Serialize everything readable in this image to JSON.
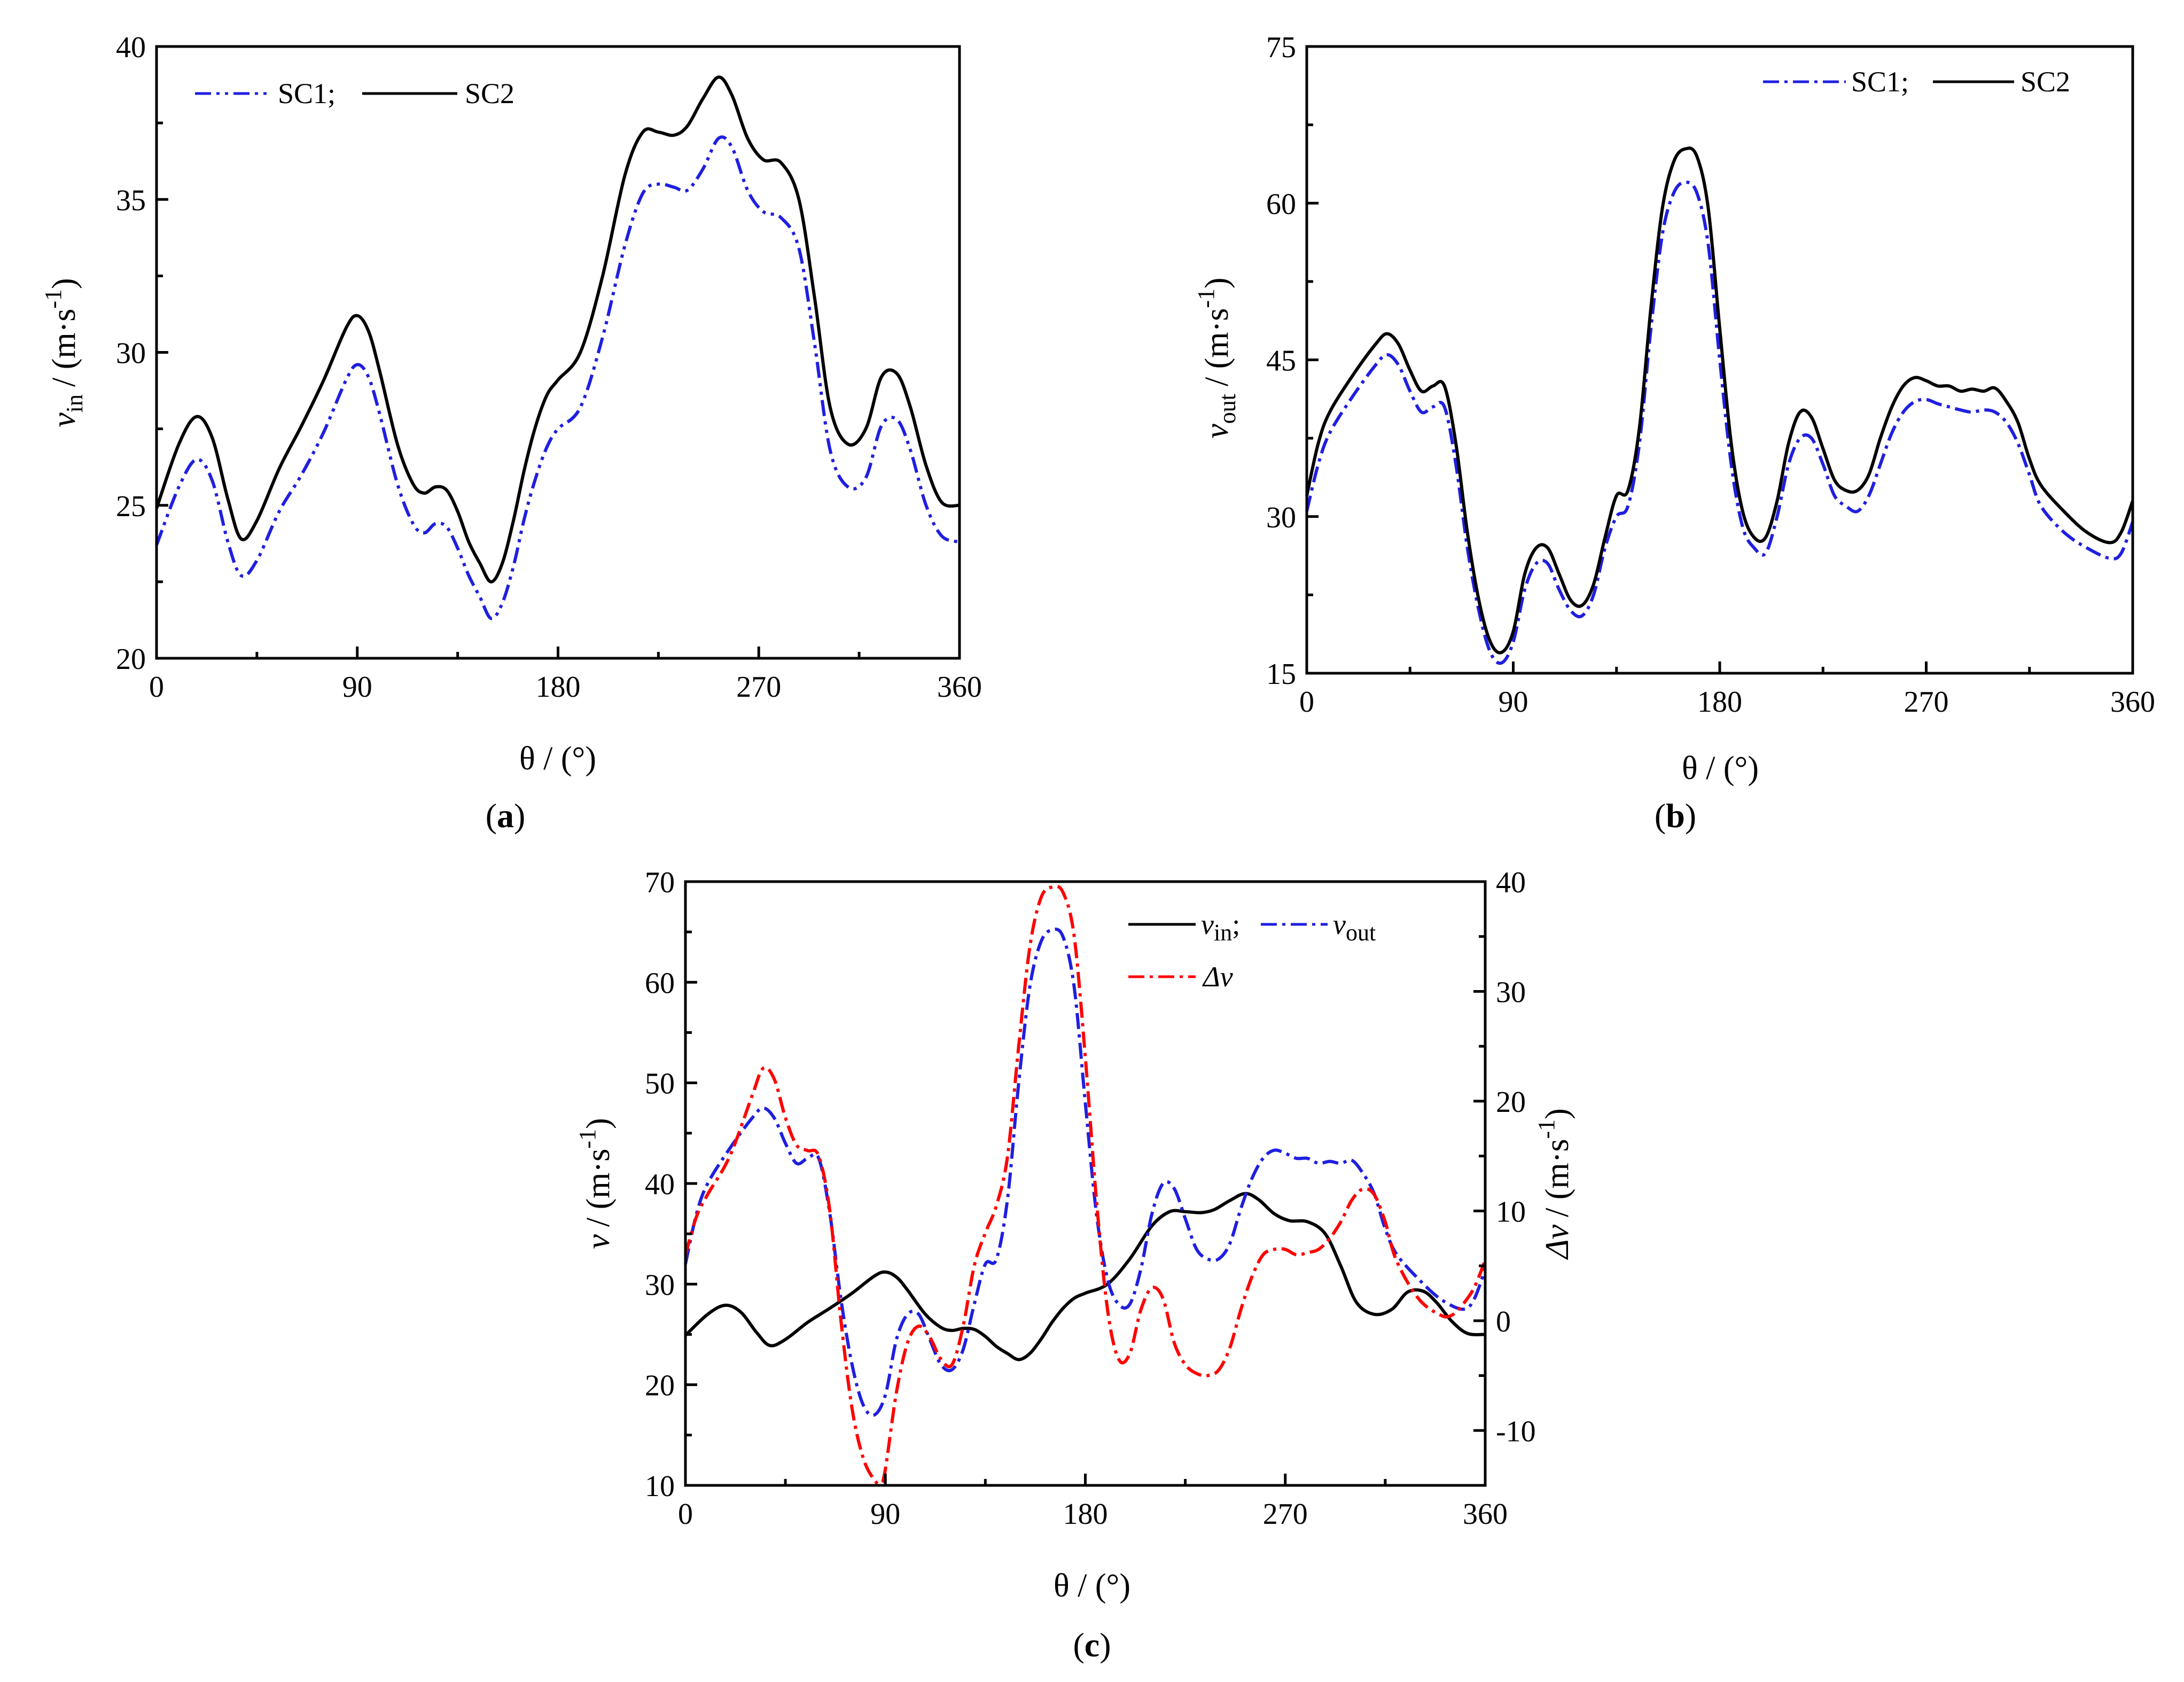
{
  "figure": {
    "panels": [
      {
        "id": "a",
        "label": "a"
      },
      {
        "id": "b",
        "label": "b"
      },
      {
        "id": "c",
        "label": "c"
      }
    ]
  },
  "colors": {
    "sc1": "#1f1fe0",
    "sc2": "#000000",
    "delta": "#ff0000"
  },
  "chart_data": [
    {
      "id": "a",
      "type": "line",
      "title": "",
      "panel_label": "a",
      "xlabel": "θ / (°)",
      "ylabel_main": "v",
      "ylabel_sub": "in",
      "ylabel_unit": "/ (m·s",
      "ylabel_exp": "-1",
      "xlim": [
        0,
        360
      ],
      "ylim": [
        20,
        40
      ],
      "xticks": [
        0,
        90,
        180,
        270,
        360
      ],
      "yticks": [
        20,
        25,
        30,
        35,
        40
      ],
      "legend": {
        "position": "top-left",
        "text1": "SC1;",
        "text2": "SC2"
      },
      "series": [
        {
          "name": "SC1",
          "style": "dash-dot-dot",
          "color": "#1f1fe0",
          "x": [
            0,
            10,
            18,
            25,
            32,
            38,
            45,
            55,
            65,
            75,
            85,
            90,
            95,
            100,
            108,
            115,
            120,
            125,
            130,
            135,
            140,
            145,
            150,
            155,
            160,
            165,
            170,
            175,
            180,
            190,
            200,
            210,
            218,
            225,
            232,
            238,
            245,
            252,
            258,
            265,
            272,
            280,
            288,
            295,
            302,
            310,
            318,
            325,
            332,
            338,
            345,
            352,
            360
          ],
          "y": [
            23.7,
            25.6,
            26.5,
            25.8,
            23.8,
            22.7,
            23.2,
            24.8,
            26.0,
            27.4,
            29.1,
            29.6,
            29.2,
            28.0,
            25.7,
            24.4,
            24.1,
            24.4,
            24.3,
            23.6,
            22.7,
            22.0,
            21.3,
            21.8,
            23.0,
            24.6,
            25.9,
            26.9,
            27.5,
            28.2,
            30.5,
            33.5,
            35.2,
            35.5,
            35.4,
            35.3,
            36.0,
            37.0,
            36.7,
            35.3,
            34.6,
            34.4,
            33.4,
            30.3,
            26.8,
            25.6,
            25.9,
            27.6,
            27.8,
            26.8,
            25.0,
            24.0,
            23.8
          ]
        },
        {
          "name": "SC2",
          "style": "solid",
          "color": "#000000",
          "x": [
            0,
            10,
            18,
            25,
            32,
            38,
            45,
            55,
            65,
            75,
            85,
            90,
            95,
            100,
            108,
            115,
            120,
            125,
            130,
            135,
            140,
            145,
            150,
            155,
            160,
            165,
            170,
            175,
            180,
            190,
            200,
            210,
            218,
            225,
            232,
            238,
            245,
            252,
            258,
            265,
            272,
            280,
            288,
            295,
            302,
            310,
            318,
            325,
            332,
            338,
            345,
            352,
            360
          ],
          "y": [
            24.9,
            27.0,
            27.9,
            27.2,
            25.2,
            23.9,
            24.5,
            26.2,
            27.6,
            29.1,
            30.8,
            31.2,
            30.7,
            29.4,
            27.0,
            25.7,
            25.4,
            25.6,
            25.5,
            24.8,
            23.8,
            23.1,
            22.5,
            23.1,
            24.5,
            26.2,
            27.6,
            28.6,
            29.1,
            30.0,
            32.5,
            35.8,
            37.2,
            37.2,
            37.1,
            37.4,
            38.3,
            39.0,
            38.4,
            37.0,
            36.3,
            36.2,
            35.0,
            31.8,
            28.2,
            27.0,
            27.5,
            29.2,
            29.3,
            28.2,
            26.3,
            25.1,
            25.0
          ]
        }
      ]
    },
    {
      "id": "b",
      "type": "line",
      "title": "",
      "panel_label": "b",
      "xlabel": "θ / (°)",
      "ylabel_main": "v",
      "ylabel_sub": "out",
      "ylabel_unit": "/ (m·s",
      "ylabel_exp": "-1",
      "xlim": [
        0,
        360
      ],
      "ylim": [
        15,
        75
      ],
      "xticks": [
        0,
        90,
        180,
        270,
        360
      ],
      "yticks": [
        15,
        30,
        45,
        60,
        75
      ],
      "legend": {
        "position": "top-right",
        "text1": "SC1;",
        "text2": "SC2"
      },
      "series": [
        {
          "name": "SC1",
          "style": "dash-dot",
          "color": "#1f1fe0",
          "x": [
            0,
            5,
            10,
            20,
            30,
            35,
            40,
            45,
            50,
            55,
            60,
            65,
            70,
            75,
            80,
            85,
            90,
            95,
            100,
            105,
            110,
            115,
            120,
            125,
            130,
            135,
            140,
            145,
            150,
            155,
            160,
            165,
            170,
            175,
            180,
            185,
            190,
            195,
            200,
            205,
            210,
            215,
            220,
            225,
            230,
            235,
            240,
            245,
            250,
            255,
            260,
            265,
            270,
            275,
            280,
            285,
            290,
            295,
            300,
            305,
            310,
            315,
            320,
            330,
            340,
            350,
            355,
            360
          ],
          "y": [
            30.5,
            35.0,
            38.0,
            41.5,
            44.5,
            45.5,
            44.5,
            42.0,
            40.0,
            40.5,
            40.5,
            35.0,
            27.0,
            21.0,
            17.0,
            16.0,
            18.0,
            23.0,
            25.5,
            25.5,
            23.0,
            21.0,
            20.5,
            22.5,
            27.0,
            30.0,
            31.0,
            37.0,
            48.0,
            57.0,
            61.0,
            62.0,
            61.0,
            56.0,
            45.0,
            35.0,
            29.0,
            27.0,
            26.5,
            30.0,
            35.0,
            37.5,
            37.5,
            35.0,
            32.0,
            31.0,
            30.5,
            32.0,
            35.0,
            38.0,
            40.0,
            41.0,
            41.2,
            40.8,
            40.5,
            40.2,
            40.0,
            40.2,
            40.0,
            39.0,
            37.0,
            34.0,
            31.0,
            28.5,
            27.0,
            26.0,
            26.5,
            29.5
          ]
        },
        {
          "name": "SC2",
          "style": "solid",
          "color": "#000000",
          "x": [
            0,
            5,
            10,
            20,
            30,
            35,
            40,
            45,
            50,
            55,
            60,
            65,
            70,
            75,
            80,
            85,
            90,
            95,
            100,
            105,
            110,
            115,
            120,
            125,
            130,
            135,
            140,
            145,
            150,
            155,
            160,
            165,
            170,
            175,
            180,
            185,
            190,
            195,
            200,
            205,
            210,
            215,
            220,
            225,
            230,
            235,
            240,
            245,
            250,
            255,
            260,
            265,
            270,
            275,
            280,
            285,
            290,
            295,
            300,
            305,
            310,
            315,
            320,
            330,
            340,
            350,
            355,
            360
          ],
          "y": [
            32.0,
            37.0,
            40.0,
            43.5,
            46.5,
            47.5,
            46.5,
            44.0,
            42.0,
            42.5,
            42.5,
            37.0,
            28.5,
            22.0,
            18.0,
            17.0,
            19.0,
            24.5,
            27.0,
            27.0,
            24.5,
            22.0,
            21.5,
            23.5,
            28.0,
            32.0,
            32.5,
            38.5,
            50.0,
            59.5,
            64.0,
            65.2,
            64.5,
            59.5,
            48.0,
            37.0,
            30.5,
            28.0,
            28.0,
            31.5,
            37.0,
            40.0,
            39.5,
            36.5,
            33.5,
            32.5,
            32.5,
            34.0,
            37.5,
            40.5,
            42.5,
            43.3,
            43.0,
            42.5,
            42.5,
            42.0,
            42.2,
            42.0,
            42.3,
            41.0,
            39.0,
            35.5,
            33.0,
            30.5,
            28.5,
            27.5,
            28.5,
            31.5
          ]
        }
      ]
    },
    {
      "id": "c",
      "type": "line",
      "title": "",
      "panel_label": "c",
      "xlabel": "θ / (°)",
      "ylabel_main": "v",
      "ylabel_unit": "/ (m·s",
      "ylabel_exp": "-1",
      "y2label_main": "Δv",
      "y2label_unit": "/ (m·s",
      "y2label_exp": "-1",
      "xlim": [
        0,
        360
      ],
      "ylim": [
        10,
        70
      ],
      "y2lim": [
        -15,
        40
      ],
      "xticks": [
        0,
        90,
        180,
        270,
        360
      ],
      "yticks": [
        10,
        20,
        30,
        40,
        50,
        60,
        70
      ],
      "y2ticks": [
        -10,
        0,
        10,
        20,
        30,
        40
      ],
      "legend": {
        "position": "top-right",
        "vin_main": "v",
        "vin_sub": "in",
        "vin_sep": ";",
        "vout_main": "v",
        "vout_sub": "out",
        "delta_label": "Δv"
      },
      "series": [
        {
          "name": "v_in",
          "axis": "left",
          "style": "solid",
          "color": "#000000",
          "x": [
            0,
            10,
            18,
            25,
            32,
            38,
            45,
            55,
            65,
            75,
            85,
            90,
            95,
            100,
            108,
            115,
            120,
            125,
            130,
            135,
            140,
            145,
            150,
            155,
            160,
            165,
            170,
            175,
            180,
            190,
            200,
            210,
            218,
            225,
            232,
            238,
            245,
            252,
            258,
            265,
            272,
            280,
            288,
            295,
            302,
            310,
            318,
            325,
            332,
            338,
            345,
            352,
            360
          ],
          "y": [
            24.9,
            27.0,
            27.9,
            27.2,
            25.2,
            23.9,
            24.5,
            26.2,
            27.6,
            29.1,
            30.8,
            31.2,
            30.7,
            29.4,
            27.0,
            25.7,
            25.4,
            25.6,
            25.5,
            24.8,
            23.8,
            23.1,
            22.5,
            23.1,
            24.5,
            26.2,
            27.6,
            28.6,
            29.1,
            30.0,
            32.5,
            35.8,
            37.2,
            37.2,
            37.1,
            37.4,
            38.3,
            39.0,
            38.4,
            37.0,
            36.3,
            36.2,
            35.0,
            31.8,
            28.2,
            27.0,
            27.5,
            29.2,
            29.3,
            28.2,
            26.3,
            25.1,
            25.0
          ]
        },
        {
          "name": "v_out",
          "axis": "left",
          "style": "dash-dot",
          "color": "#1f1fe0",
          "x": [
            0,
            5,
            10,
            20,
            30,
            35,
            40,
            45,
            50,
            55,
            60,
            65,
            70,
            75,
            80,
            85,
            90,
            95,
            100,
            105,
            110,
            115,
            120,
            125,
            130,
            135,
            140,
            145,
            150,
            155,
            160,
            165,
            170,
            175,
            180,
            185,
            190,
            195,
            200,
            205,
            210,
            215,
            220,
            225,
            230,
            235,
            240,
            245,
            250,
            255,
            260,
            265,
            270,
            275,
            280,
            285,
            290,
            295,
            300,
            305,
            310,
            315,
            320,
            330,
            340,
            350,
            355,
            360
          ],
          "y": [
            32.0,
            37.0,
            40.0,
            43.5,
            46.5,
            47.5,
            46.5,
            44.0,
            42.0,
            42.5,
            42.5,
            37.0,
            28.5,
            22.0,
            18.0,
            17.0,
            19.0,
            24.5,
            27.0,
            27.0,
            24.5,
            22.0,
            21.5,
            23.5,
            28.0,
            32.0,
            32.5,
            38.5,
            50.0,
            59.5,
            64.0,
            65.2,
            64.5,
            59.5,
            48.0,
            37.0,
            30.5,
            28.0,
            28.0,
            31.5,
            37.0,
            40.0,
            39.5,
            36.5,
            33.5,
            32.5,
            32.5,
            34.0,
            37.5,
            40.5,
            42.5,
            43.3,
            43.0,
            42.5,
            42.5,
            42.0,
            42.2,
            42.0,
            42.3,
            41.0,
            39.0,
            35.5,
            33.0,
            30.5,
            28.5,
            27.5,
            28.5,
            31.5
          ]
        },
        {
          "name": "delta_v",
          "axis": "right",
          "style": "dash-dot",
          "color": "#ff0000",
          "x": [
            0,
            5,
            10,
            20,
            30,
            35,
            40,
            45,
            50,
            55,
            60,
            65,
            70,
            75,
            80,
            85,
            88,
            90,
            95,
            100,
            105,
            110,
            115,
            120,
            125,
            130,
            135,
            140,
            145,
            150,
            155,
            160,
            165,
            170,
            175,
            180,
            185,
            190,
            195,
            200,
            205,
            210,
            215,
            220,
            225,
            230,
            235,
            240,
            245,
            250,
            255,
            260,
            265,
            270,
            275,
            280,
            285,
            290,
            295,
            300,
            305,
            310,
            315,
            320,
            330,
            340,
            345,
            350,
            355,
            360
          ],
          "y": [
            6.0,
            9.5,
            11.5,
            15.0,
            20.5,
            23.0,
            22.0,
            18.5,
            16.0,
            15.5,
            15.0,
            10.0,
            0.0,
            -8.0,
            -12.5,
            -14.5,
            -14.8,
            -13.5,
            -6.5,
            -2.0,
            -0.5,
            -1.5,
            -3.5,
            -4.0,
            -0.5,
            5.0,
            8.0,
            10.5,
            15.0,
            25.0,
            34.0,
            38.5,
            39.5,
            39.0,
            35.0,
            24.0,
            11.0,
            1.0,
            -3.5,
            -3.0,
            1.0,
            3.0,
            2.0,
            -2.0,
            -4.0,
            -4.8,
            -5.0,
            -4.5,
            -2.5,
            1.0,
            4.0,
            6.0,
            6.5,
            6.5,
            6.0,
            6.2,
            6.5,
            7.5,
            9.0,
            11.0,
            12.0,
            11.5,
            9.0,
            5.5,
            2.0,
            0.5,
            0.5,
            1.5,
            3.0,
            5.5
          ]
        }
      ]
    }
  ]
}
